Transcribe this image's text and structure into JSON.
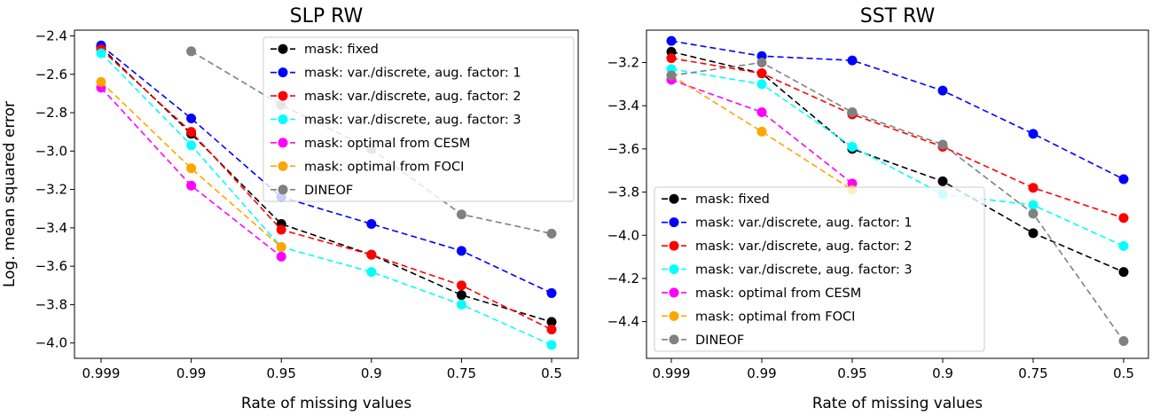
{
  "colors": {
    "fixed": "#000000",
    "aug1": "#0000ff",
    "aug2": "#ff0000",
    "aug3": "#00ffff",
    "cesm": "#ff00ff",
    "foci": "#ffa500",
    "dineof": "#808080"
  },
  "chart_data": [
    {
      "type": "line",
      "title": "SLP RW",
      "xlabel": "Rate of missing values",
      "ylabel": "Log. mean squared error",
      "categories": [
        "0.999",
        "0.99",
        "0.95",
        "0.9",
        "0.75",
        "0.5"
      ],
      "ylim": [
        -4.08,
        -2.37
      ],
      "yticks": [
        -4.0,
        -3.8,
        -3.6,
        -3.4,
        -3.2,
        -3.0,
        -2.8,
        -2.6,
        -2.4
      ],
      "ytick_labels": [
        "−4.0",
        "−3.8",
        "−3.6",
        "−3.4",
        "−3.2",
        "−3.0",
        "−2.8",
        "−2.6",
        "−2.4"
      ],
      "grid": false,
      "legend_position": "top-right",
      "series": [
        {
          "name": "mask: fixed",
          "color_key": "fixed",
          "values": [
            -2.46,
            -2.91,
            -3.38,
            -3.54,
            -3.75,
            -3.89
          ]
        },
        {
          "name": "mask: var./discrete, aug. factor: 1",
          "color_key": "aug1",
          "values": [
            -2.45,
            -2.83,
            -3.24,
            -3.38,
            -3.52,
            -3.74
          ]
        },
        {
          "name": "mask: var./discrete, aug. factor: 2",
          "color_key": "aug2",
          "values": [
            -2.47,
            -2.9,
            -3.41,
            -3.54,
            -3.7,
            -3.93
          ]
        },
        {
          "name": "mask: var./discrete, aug. factor: 3",
          "color_key": "aug3",
          "values": [
            -2.49,
            -2.97,
            -3.5,
            -3.63,
            -3.8,
            -4.01
          ]
        },
        {
          "name": "mask: optimal from CESM",
          "color_key": "cesm",
          "values": [
            -2.67,
            -3.18,
            -3.55,
            null,
            null,
            null
          ]
        },
        {
          "name": "mask: optimal from FOCI",
          "color_key": "foci",
          "values": [
            -2.64,
            -3.09,
            -3.5,
            null,
            null,
            null
          ]
        },
        {
          "name": "DINEOF",
          "color_key": "dineof",
          "values": [
            null,
            -2.48,
            -2.76,
            -2.99,
            -3.33,
            -3.43
          ]
        }
      ]
    },
    {
      "type": "line",
      "title": "SST RW",
      "xlabel": "Rate of missing values",
      "ylabel": "",
      "categories": [
        "0.999",
        "0.99",
        "0.95",
        "0.9",
        "0.75",
        "0.5"
      ],
      "ylim": [
        -4.57,
        -3.05
      ],
      "yticks": [
        -4.4,
        -4.2,
        -4.0,
        -3.8,
        -3.6,
        -3.4,
        -3.2
      ],
      "ytick_labels": [
        "−4.4",
        "−4.2",
        "−4.0",
        "−3.8",
        "−3.6",
        "−3.4",
        "−3.2"
      ],
      "grid": false,
      "legend_position": "bottom-left",
      "series": [
        {
          "name": "mask: fixed",
          "color_key": "fixed",
          "values": [
            -3.15,
            -3.25,
            -3.6,
            -3.75,
            -3.99,
            -4.17
          ]
        },
        {
          "name": "mask: var./discrete, aug. factor: 1",
          "color_key": "aug1",
          "values": [
            -3.1,
            -3.17,
            -3.19,
            -3.33,
            -3.53,
            -3.74
          ]
        },
        {
          "name": "mask: var./discrete, aug. factor: 2",
          "color_key": "aug2",
          "values": [
            -3.18,
            -3.25,
            -3.44,
            -3.59,
            -3.78,
            -3.92
          ]
        },
        {
          "name": "mask: var./discrete, aug. factor: 3",
          "color_key": "aug3",
          "values": [
            -3.23,
            -3.3,
            -3.59,
            -3.81,
            -3.86,
            -4.05
          ]
        },
        {
          "name": "mask: optimal from CESM",
          "color_key": "cesm",
          "values": [
            -3.28,
            -3.43,
            -3.76,
            null,
            null,
            null
          ]
        },
        {
          "name": "mask: optimal from FOCI",
          "color_key": "foci",
          "values": [
            -3.26,
            -3.52,
            -3.79,
            null,
            null,
            null
          ]
        },
        {
          "name": "DINEOF",
          "color_key": "dineof",
          "values": [
            -3.26,
            -3.2,
            -3.43,
            -3.58,
            -3.9,
            -4.49
          ]
        }
      ]
    }
  ]
}
